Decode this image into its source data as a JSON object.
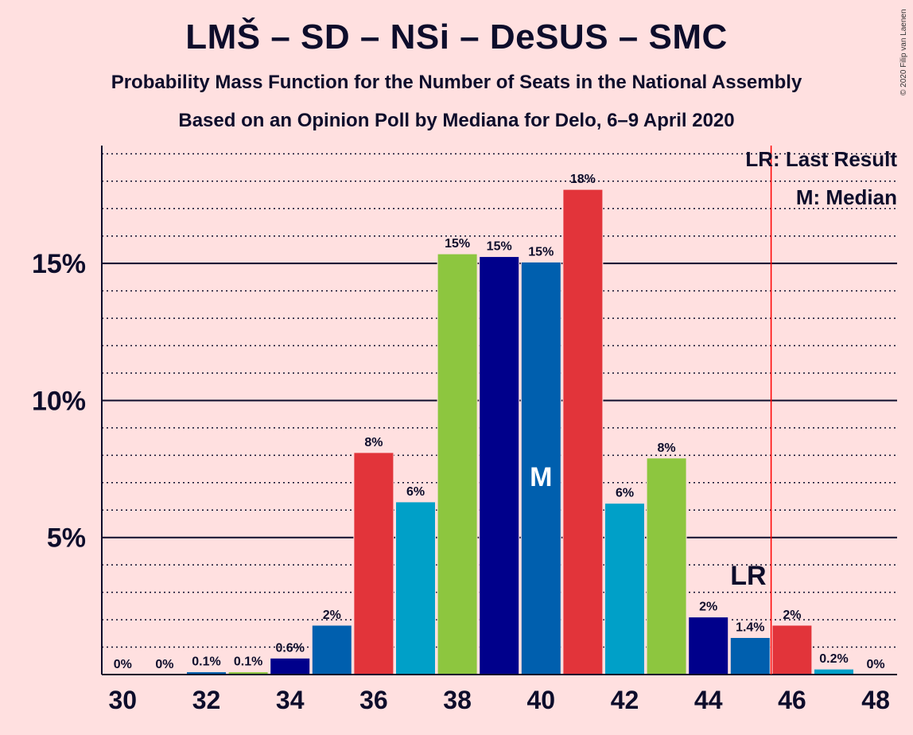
{
  "title": "LMŠ – SD – NSi – DeSUS – SMC",
  "subtitle1": "Probability Mass Function for the Number of Seats in the National Assembly",
  "subtitle2": "Based on an Opinion Poll by Mediana for Delo, 6–9 April 2020",
  "copyright": "© 2020 Filip van Laenen",
  "chart_data": {
    "type": "bar",
    "x": [
      30,
      31,
      32,
      33,
      34,
      35,
      36,
      37,
      38,
      39,
      40,
      41,
      42,
      43,
      44,
      45,
      46,
      47,
      48
    ],
    "values": [
      0,
      0,
      0.1,
      0.1,
      0.6,
      1.8,
      8.1,
      6.3,
      15.35,
      15.25,
      15.05,
      17.7,
      6.25,
      7.9,
      2.1,
      1.35,
      1.8,
      0.2,
      0
    ],
    "value_labels": [
      "0%",
      "0%",
      "0.1%",
      "0.1%",
      "0.6%",
      "2%",
      "8%",
      "6%",
      "15%",
      "15%",
      "15%",
      "18%",
      "6%",
      "8%",
      "2%",
      "1.4%",
      "2%",
      "0.2%",
      "0%"
    ],
    "bar_colors": [
      "#005fae",
      "#00a0c8",
      "#005fae",
      "#8dc63f",
      "#00008b",
      "#005fae",
      "#e2343a",
      "#00a0c8",
      "#8dc63f",
      "#00008b",
      "#005fae",
      "#e2343a",
      "#00a0c8",
      "#8dc63f",
      "#00008b",
      "#005fae",
      "#e2343a",
      "#00a0c8",
      "#005fae"
    ],
    "x_ticks": [
      "30",
      "32",
      "34",
      "36",
      "38",
      "40",
      "42",
      "44",
      "46",
      "48"
    ],
    "y_ticks": [
      "5%",
      "10%",
      "15%"
    ],
    "y_tick_values": [
      5,
      10,
      15
    ],
    "ylim": [
      0,
      19.3
    ],
    "xlim": [
      29.5,
      48.5
    ],
    "median": 40,
    "median_label": "M",
    "last_result": 45.5,
    "last_result_label": "LR",
    "last_result_color": "#ff0000",
    "legend": [
      "LR: Last Result",
      "M: Median"
    ],
    "legend_position": "top-right",
    "grid": "solid major lines at 5% steps, dotted minor lines at 1% steps"
  }
}
